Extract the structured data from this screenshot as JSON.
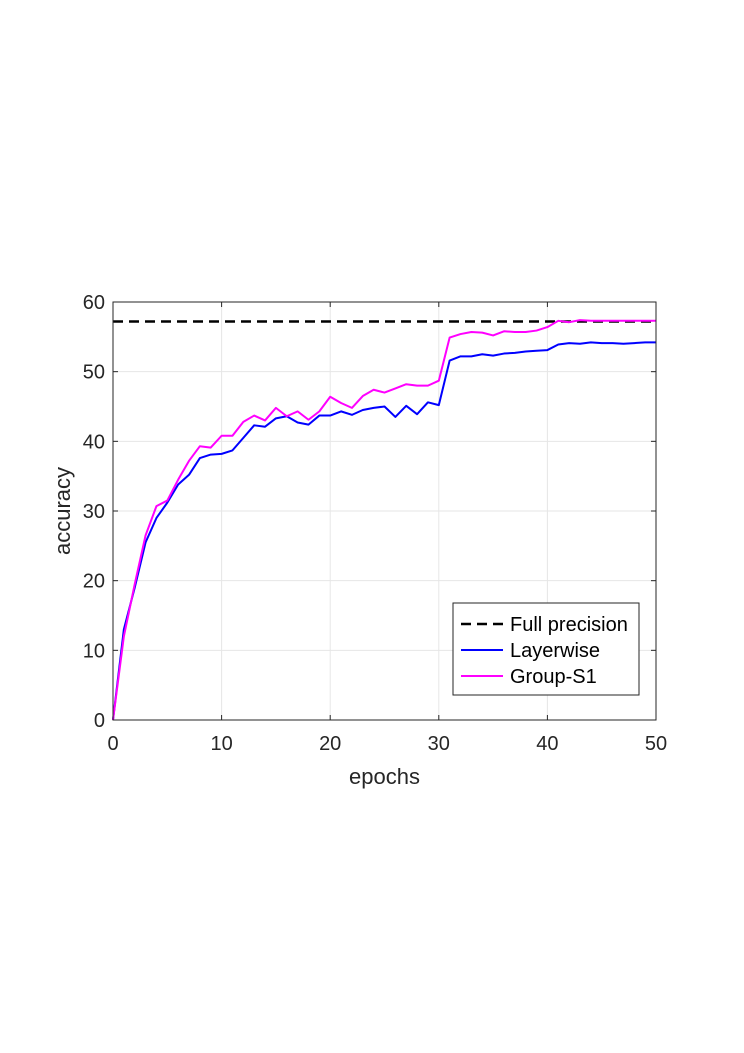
{
  "chart_data": {
    "type": "line",
    "title": "",
    "xlabel": "epochs",
    "ylabel": "accuracy",
    "xlim": [
      0,
      50
    ],
    "ylim": [
      0,
      60
    ],
    "xticks": [
      0,
      10,
      20,
      30,
      40,
      50
    ],
    "yticks": [
      0,
      10,
      20,
      30,
      40,
      50,
      60
    ],
    "grid": true,
    "legend_position": "bottom-right",
    "series": [
      {
        "name": "Full precision",
        "style": "dashed",
        "color": "#000000",
        "x": [
          0,
          50
        ],
        "values": [
          57.2,
          57.2
        ]
      },
      {
        "name": "Layerwise",
        "style": "solid",
        "color": "#0000FF",
        "x": [
          0,
          1,
          2,
          3,
          4,
          5,
          6,
          7,
          8,
          9,
          10,
          11,
          12,
          13,
          14,
          15,
          16,
          17,
          18,
          19,
          20,
          21,
          22,
          23,
          24,
          25,
          26,
          27,
          28,
          29,
          30,
          31,
          32,
          33,
          34,
          35,
          36,
          37,
          38,
          39,
          40,
          41,
          42,
          43,
          44,
          45,
          46,
          47,
          48,
          49,
          50
        ],
        "values": [
          0,
          13,
          19,
          25.5,
          29,
          31.2,
          33.8,
          35.2,
          37.6,
          38.1,
          38.2,
          38.7,
          40.5,
          42.3,
          42.1,
          43.3,
          43.6,
          42.7,
          42.4,
          43.7,
          43.7,
          44.3,
          43.8,
          44.5,
          44.8,
          45.0,
          43.5,
          45.1,
          43.9,
          45.6,
          45.2,
          51.6,
          52.2,
          52.2,
          52.5,
          52.3,
          52.6,
          52.7,
          52.9,
          53.0,
          53.1,
          53.9,
          54.1,
          54.0,
          54.2,
          54.1,
          54.1,
          54.0,
          54.1,
          54.2,
          54.2
        ]
      },
      {
        "name": "Group-S1",
        "style": "solid",
        "color": "#FF00FF",
        "x": [
          0,
          1,
          2,
          3,
          4,
          5,
          6,
          7,
          8,
          9,
          10,
          11,
          12,
          13,
          14,
          15,
          16,
          17,
          18,
          19,
          20,
          21,
          22,
          23,
          24,
          25,
          26,
          27,
          28,
          29,
          30,
          31,
          32,
          33,
          34,
          35,
          36,
          37,
          38,
          39,
          40,
          41,
          42,
          43,
          44,
          45,
          46,
          47,
          48,
          49,
          50
        ],
        "values": [
          0,
          12,
          19.5,
          26.5,
          30.7,
          31.5,
          34.5,
          37.2,
          39.3,
          39.1,
          40.8,
          40.8,
          42.8,
          43.7,
          43.0,
          44.8,
          43.6,
          44.3,
          43.1,
          44.3,
          46.4,
          45.5,
          44.8,
          46.5,
          47.4,
          47.0,
          47.6,
          48.2,
          48.0,
          48.0,
          48.7,
          54.9,
          55.4,
          55.7,
          55.6,
          55.2,
          55.8,
          55.7,
          55.7,
          55.9,
          56.4,
          57.3,
          57.1,
          57.4,
          57.3,
          57.3,
          57.3,
          57.3,
          57.3,
          57.3,
          57.3
        ]
      }
    ]
  }
}
